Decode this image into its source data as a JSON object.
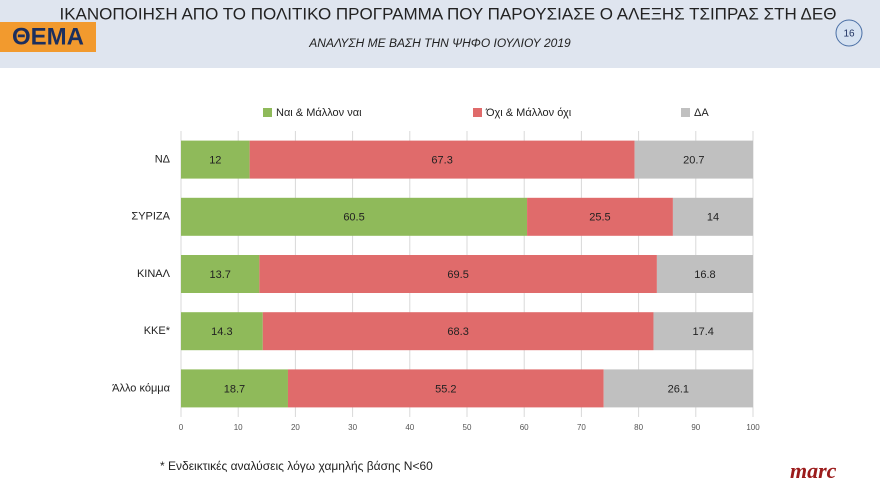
{
  "header": {
    "logo": "ΘΕΜΑ",
    "page_number": "16"
  },
  "chart_data": {
    "type": "stacked-bar-horizontal",
    "title": "ΙΚΑΝΟΠΟΙΗΣΗ ΑΠΟ ΤΟ ΠΟΛΙΤΙΚΟ ΠΡΟΓΡΑΜΜΑ ΠΟΥ ΠΑΡΟΥΣΙΑΣΕ Ο ΑΛΕΞΗΣ ΤΣΙΠΡΑΣ ΣΤΗ ΔΕΘ",
    "subtitle": "ΑΝΑΛΥΣΗ ΜΕ ΒΑΣΗ ΤΗΝ ΨΗΦΟ ΙΟΥΛΙΟΥ 2019",
    "categories": [
      "ΝΔ",
      "ΣΥΡΙΖΑ",
      "ΚΙΝΑΛ",
      "ΚΚΕ*",
      "Άλλο κόμμα"
    ],
    "series": [
      {
        "name": "Ναι & Μάλλον ναι",
        "color": "#8fba5a",
        "values": [
          12,
          60.5,
          13.7,
          14.3,
          18.7
        ]
      },
      {
        "name": "Όχι & Μάλλον όχι",
        "color": "#e06b6b",
        "values": [
          67.3,
          25.5,
          69.5,
          68.3,
          55.2
        ]
      },
      {
        "name": "ΔΑ",
        "color": "#c0c0c0",
        "values": [
          20.7,
          14,
          16.8,
          17.4,
          26.1
        ]
      }
    ],
    "xlim": [
      0,
      100
    ],
    "xticks": [
      0,
      10,
      20,
      30,
      40,
      50,
      60,
      70,
      80,
      90,
      100
    ],
    "grid": true,
    "legend": "top",
    "footnote": "* Ενδεικτικές αναλύσεις λόγω χαμηλής βάσης Ν<60"
  },
  "footer": {
    "brand": "marc"
  }
}
